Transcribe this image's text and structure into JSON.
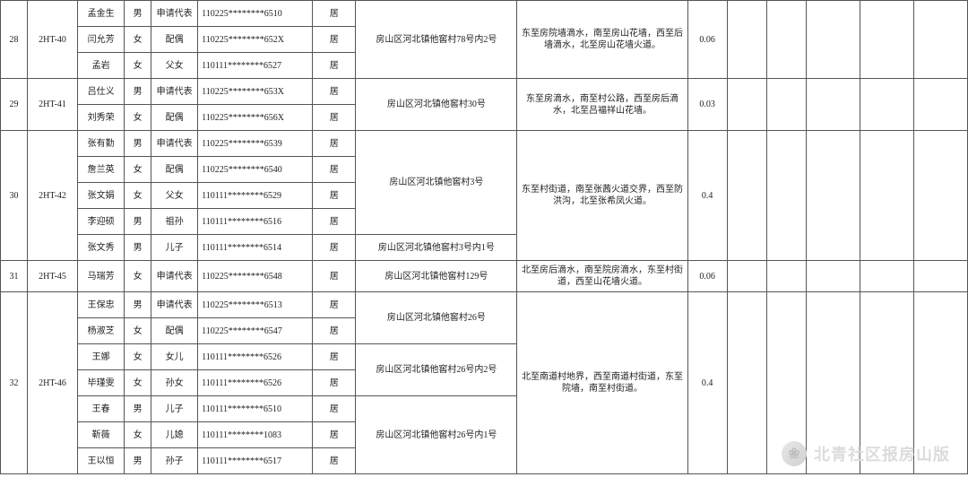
{
  "cols": {
    "c1_w": 30,
    "c2_w": 56,
    "c3_w": 52,
    "c4_w": 30,
    "c5_w": 52,
    "c6_w": 128,
    "c7_w": 48,
    "c8_w": 180,
    "c9_w": 190,
    "c10_w": 44,
    "c11_w": 44,
    "c12_w": 44,
    "c13_w": 60,
    "c14_w": 60,
    "c15_w": 60
  },
  "colors": {
    "border": "#555555",
    "text": "#222222",
    "background": "#ffffff",
    "watermark": "#dcdcdc"
  },
  "groups": [
    {
      "seq": "28",
      "code": "2HT-40",
      "addr_groups": [
        {
          "addr": "房山区河北镇他窖村78号内2号",
          "rows_span": 3
        }
      ],
      "boundary": "东至房院墙滴水，南至房山花墙，西至后墙滴水，北至房山花墙火道。",
      "area": "0.06",
      "rows": [
        {
          "name": "孟金生",
          "sex": "男",
          "rel": "申请代表",
          "id": "110225********6510",
          "res": "居"
        },
        {
          "name": "闫允芳",
          "sex": "女",
          "rel": "配偶",
          "id": "110225********652X",
          "res": "居"
        },
        {
          "name": "孟岩",
          "sex": "女",
          "rel": "父女",
          "id": "110111********6527",
          "res": "居"
        }
      ]
    },
    {
      "seq": "29",
      "code": "2HT-41",
      "addr_groups": [
        {
          "addr": "房山区河北镇他窖村30号",
          "rows_span": 2
        }
      ],
      "boundary": "东至房滴水，南至村公路，西至房后滴水，北至吕福祥山花墙。",
      "area": "0.03",
      "rows": [
        {
          "name": "吕仕义",
          "sex": "男",
          "rel": "申请代表",
          "id": "110225********653X",
          "res": "居"
        },
        {
          "name": "刘秀荣",
          "sex": "女",
          "rel": "配偶",
          "id": "110225********656X",
          "res": "居"
        }
      ]
    },
    {
      "seq": "30",
      "code": "2HT-42",
      "addr_groups": [
        {
          "addr": "房山区河北镇他窖村3号",
          "rows_span": 4
        },
        {
          "addr": "房山区河北镇他窖村3号内1号",
          "rows_span": 1
        }
      ],
      "boundary": "东至村街道，南至张茜火道交界，西至防洪沟，北至张希凤火道。",
      "area": "0.4",
      "rows": [
        {
          "name": "张有勤",
          "sex": "男",
          "rel": "申请代表",
          "id": "110225********6539",
          "res": "居"
        },
        {
          "name": "詹兰英",
          "sex": "女",
          "rel": "配偶",
          "id": "110225********6540",
          "res": "居"
        },
        {
          "name": "张文娟",
          "sex": "女",
          "rel": "父女",
          "id": "110111********6529",
          "res": "居"
        },
        {
          "name": "李迎硕",
          "sex": "男",
          "rel": "祖孙",
          "id": "110111********6516",
          "res": "居"
        },
        {
          "name": "张文秀",
          "sex": "男",
          "rel": "儿子",
          "id": "110111********6514",
          "res": "居"
        }
      ]
    },
    {
      "seq": "31",
      "code": "2HT-45",
      "addr_groups": [
        {
          "addr": "房山区河北镇他窖村129号",
          "rows_span": 1
        }
      ],
      "boundary": "北至房后滴水，南至院房滴水，东至村街道，西至山花墙火道。",
      "area": "0.06",
      "rows": [
        {
          "name": "马瑞芳",
          "sex": "女",
          "rel": "申请代表",
          "id": "110225********6548",
          "res": "居"
        }
      ]
    },
    {
      "seq": "32",
      "code": "2HT-46",
      "addr_groups": [
        {
          "addr": "房山区河北镇他窖村26号",
          "rows_span": 2
        },
        {
          "addr": "房山区河北镇他窖村26号内2号",
          "rows_span": 2
        },
        {
          "addr": "房山区河北镇他窖村26号内1号",
          "rows_span": 3
        }
      ],
      "boundary": "北至南道村地界，西至南道村街道，东至院墙，南至村街道。",
      "area": "0.4",
      "rows": [
        {
          "name": "王保忠",
          "sex": "男",
          "rel": "申请代表",
          "id": "110225********6513",
          "res": "居"
        },
        {
          "name": "杨淑芝",
          "sex": "女",
          "rel": "配偶",
          "id": "110225********6547",
          "res": "居"
        },
        {
          "name": "王娜",
          "sex": "女",
          "rel": "女儿",
          "id": "110111********6526",
          "res": "居"
        },
        {
          "name": "毕瑾雯",
          "sex": "女",
          "rel": "孙女",
          "id": "110111********6526",
          "res": "居"
        },
        {
          "name": "王春",
          "sex": "男",
          "rel": "儿子",
          "id": "110111********6510",
          "res": "居"
        },
        {
          "name": "靳薇",
          "sex": "女",
          "rel": "儿媳",
          "id": "110111********1083",
          "res": "居"
        },
        {
          "name": "王以恒",
          "sex": "男",
          "rel": "孙子",
          "id": "110111********6517",
          "res": "居"
        }
      ]
    }
  ],
  "watermark": {
    "icon_glyph": "❀",
    "text": "北青社区报房山版"
  }
}
